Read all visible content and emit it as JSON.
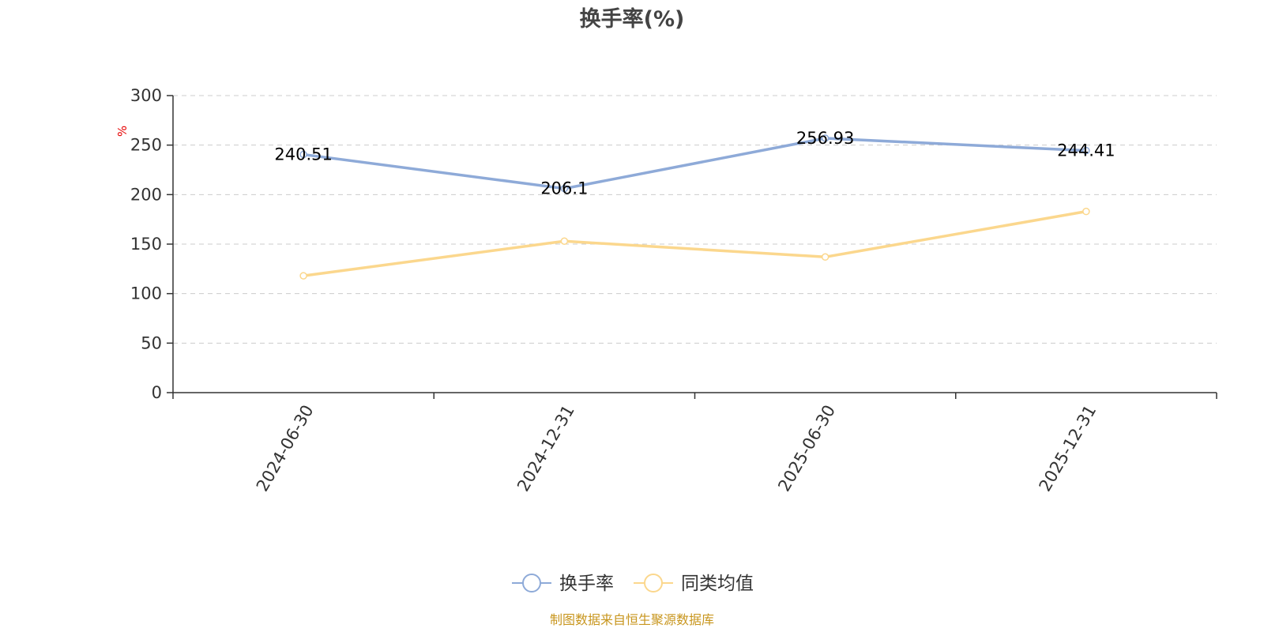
{
  "chart_data": {
    "type": "line",
    "title": "换手率(%)",
    "ylabel": "%",
    "ylim": [
      0,
      300
    ],
    "yticks": [
      "0",
      "50",
      "100",
      "150",
      "200",
      "250",
      "300"
    ],
    "categories": [
      "2024-06-30",
      "2024-12-31",
      "2025-06-30",
      "2025-12-31"
    ],
    "grid": true,
    "legend_position": "bottom",
    "series": [
      {
        "name": "换手率",
        "values": [
          240.51,
          206.1,
          256.93,
          244.41
        ],
        "labels": [
          "240.51",
          "206.1",
          "256.93",
          "244.41"
        ],
        "color": "#8eaad8"
      },
      {
        "name": "同类均值",
        "values": [
          118,
          153,
          137,
          183
        ],
        "color": "#fbd78d"
      }
    ]
  },
  "source": "制图数据来自恒生聚源数据库",
  "colors": {
    "unit": "#e60000",
    "source": "#c8961e",
    "axis": "#333333",
    "grid": "#cccccc"
  }
}
